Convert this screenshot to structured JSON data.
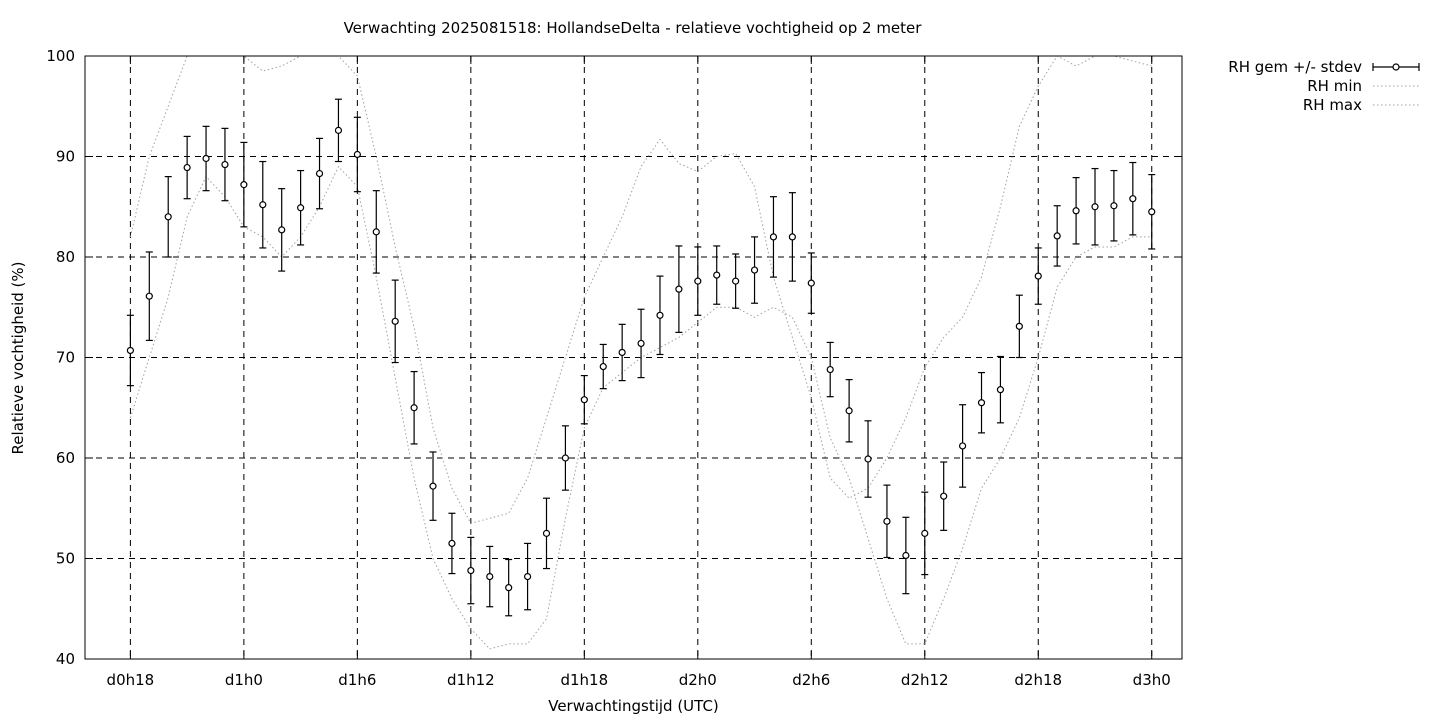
{
  "chart_data": {
    "type": "line",
    "title": "Verwachting 2025081518: HollandseDelta - relatieve vochtigheid op 2 meter",
    "xlabel": "Verwachtingstijd (UTC)",
    "ylabel": "Relatieve vochtigheid (%)",
    "ylim": [
      40,
      100
    ],
    "xlim": [
      15.6,
      73.6
    ],
    "yticks": [
      40,
      50,
      60,
      70,
      80,
      90,
      100
    ],
    "xticks": [
      {
        "value": 18,
        "label": "d0h18"
      },
      {
        "value": 24,
        "label": "d1h0"
      },
      {
        "value": 30,
        "label": "d1h6"
      },
      {
        "value": 36,
        "label": "d1h12"
      },
      {
        "value": 42,
        "label": "d1h18"
      },
      {
        "value": 48,
        "label": "d2h0"
      },
      {
        "value": 54,
        "label": "d2h6"
      },
      {
        "value": 60,
        "label": "d2h12"
      },
      {
        "value": 66,
        "label": "d2h18"
      },
      {
        "value": 72,
        "label": "d3h0"
      }
    ],
    "grid": true,
    "legend_position": "outside-top-right",
    "series": [
      {
        "name": "RH gem +/- stdev",
        "style": "errorbars",
        "color": "#000000",
        "x": [
          18,
          19,
          20,
          21,
          22,
          23,
          24,
          25,
          26,
          27,
          28,
          29,
          30,
          31,
          32,
          33,
          34,
          35,
          36,
          37,
          38,
          39,
          40,
          41,
          42,
          43,
          44,
          45,
          46,
          47,
          48,
          49,
          50,
          51,
          52,
          53,
          54,
          55,
          56,
          57,
          58,
          59,
          60,
          61,
          62,
          63,
          64,
          65,
          66,
          67,
          68,
          69,
          70,
          71,
          72
        ],
        "values": [
          70.7,
          76.1,
          84.0,
          88.9,
          89.8,
          89.2,
          87.2,
          85.2,
          82.7,
          84.9,
          88.3,
          92.6,
          90.2,
          82.5,
          73.6,
          65.0,
          57.2,
          51.5,
          48.8,
          48.2,
          47.1,
          48.2,
          52.5,
          60.0,
          65.8,
          69.1,
          70.5,
          71.4,
          74.2,
          76.8,
          77.6,
          78.2,
          77.6,
          78.7,
          82.0,
          82.0,
          77.4,
          68.8,
          64.7,
          59.9,
          53.7,
          50.3,
          52.5,
          56.2,
          61.2,
          65.5,
          66.8,
          73.1,
          78.1,
          82.1,
          84.6,
          85.0,
          85.1,
          85.8,
          84.5
        ],
        "stdev": [
          3.5,
          4.4,
          4.0,
          3.1,
          3.2,
          3.6,
          4.2,
          4.3,
          4.1,
          3.7,
          3.5,
          3.1,
          3.7,
          4.1,
          4.1,
          3.6,
          3.4,
          3.0,
          3.3,
          3.0,
          2.8,
          3.3,
          3.5,
          3.2,
          2.4,
          2.2,
          2.8,
          3.4,
          3.9,
          4.3,
          3.4,
          2.9,
          2.7,
          3.3,
          4.0,
          4.4,
          3.0,
          2.7,
          3.1,
          3.8,
          3.6,
          3.8,
          4.1,
          3.4,
          4.1,
          3.0,
          3.3,
          3.1,
          2.8,
          3.0,
          3.3,
          3.8,
          3.5,
          3.6,
          3.7
        ]
      },
      {
        "name": "RH min",
        "style": "dotted",
        "color": "#a0a0a0",
        "x": [
          18,
          19,
          20,
          21,
          22,
          23,
          24,
          25,
          26,
          27,
          28,
          29,
          30,
          31,
          32,
          33,
          34,
          35,
          36,
          37,
          38,
          39,
          40,
          41,
          42,
          43,
          44,
          45,
          46,
          47,
          48,
          49,
          50,
          51,
          52,
          53,
          54,
          55,
          56,
          57,
          58,
          59,
          60,
          61,
          62,
          63,
          64,
          65,
          66,
          67,
          68,
          69,
          70,
          71,
          72
        ],
        "values": [
          64,
          70,
          76,
          84,
          88,
          86,
          83,
          82,
          80,
          82,
          85,
          89,
          87,
          78,
          68,
          58,
          50,
          46,
          43,
          41,
          41.5,
          41.5,
          44,
          54,
          63,
          67,
          68.5,
          70,
          71,
          72,
          73.5,
          75,
          75,
          74,
          75,
          74,
          70,
          62,
          58,
          52,
          46,
          41.5,
          41.5,
          46,
          51,
          57,
          60,
          64,
          70,
          77,
          80,
          81,
          81,
          82,
          82
        ]
      },
      {
        "name": "RH max",
        "style": "dotted",
        "color": "#a0a0a0",
        "x": [
          18,
          19,
          20,
          21,
          22,
          23,
          24,
          25,
          26,
          27,
          28,
          29,
          30,
          31,
          32,
          33,
          34,
          35,
          36,
          37,
          38,
          39,
          40,
          41,
          42,
          43,
          44,
          45,
          46,
          47,
          48,
          49,
          50,
          51,
          52,
          53,
          54,
          55,
          56,
          57,
          58,
          59,
          60,
          61,
          62,
          63,
          64,
          65,
          66,
          67,
          68,
          69,
          70,
          71,
          72
        ],
        "values": [
          82,
          90,
          95,
          100,
          100,
          100,
          100,
          98.5,
          99,
          100,
          100,
          100,
          98,
          90,
          81,
          73,
          63,
          57,
          53.5,
          54,
          54.5,
          58,
          64,
          70,
          76,
          80,
          84,
          89,
          91.7,
          89.3,
          88.5,
          90,
          90.3,
          87,
          78,
          72,
          66,
          58,
          56,
          57,
          60,
          64,
          69,
          72,
          74,
          78,
          85,
          93,
          97,
          100,
          99,
          100,
          100,
          99.5,
          99
        ]
      }
    ]
  }
}
